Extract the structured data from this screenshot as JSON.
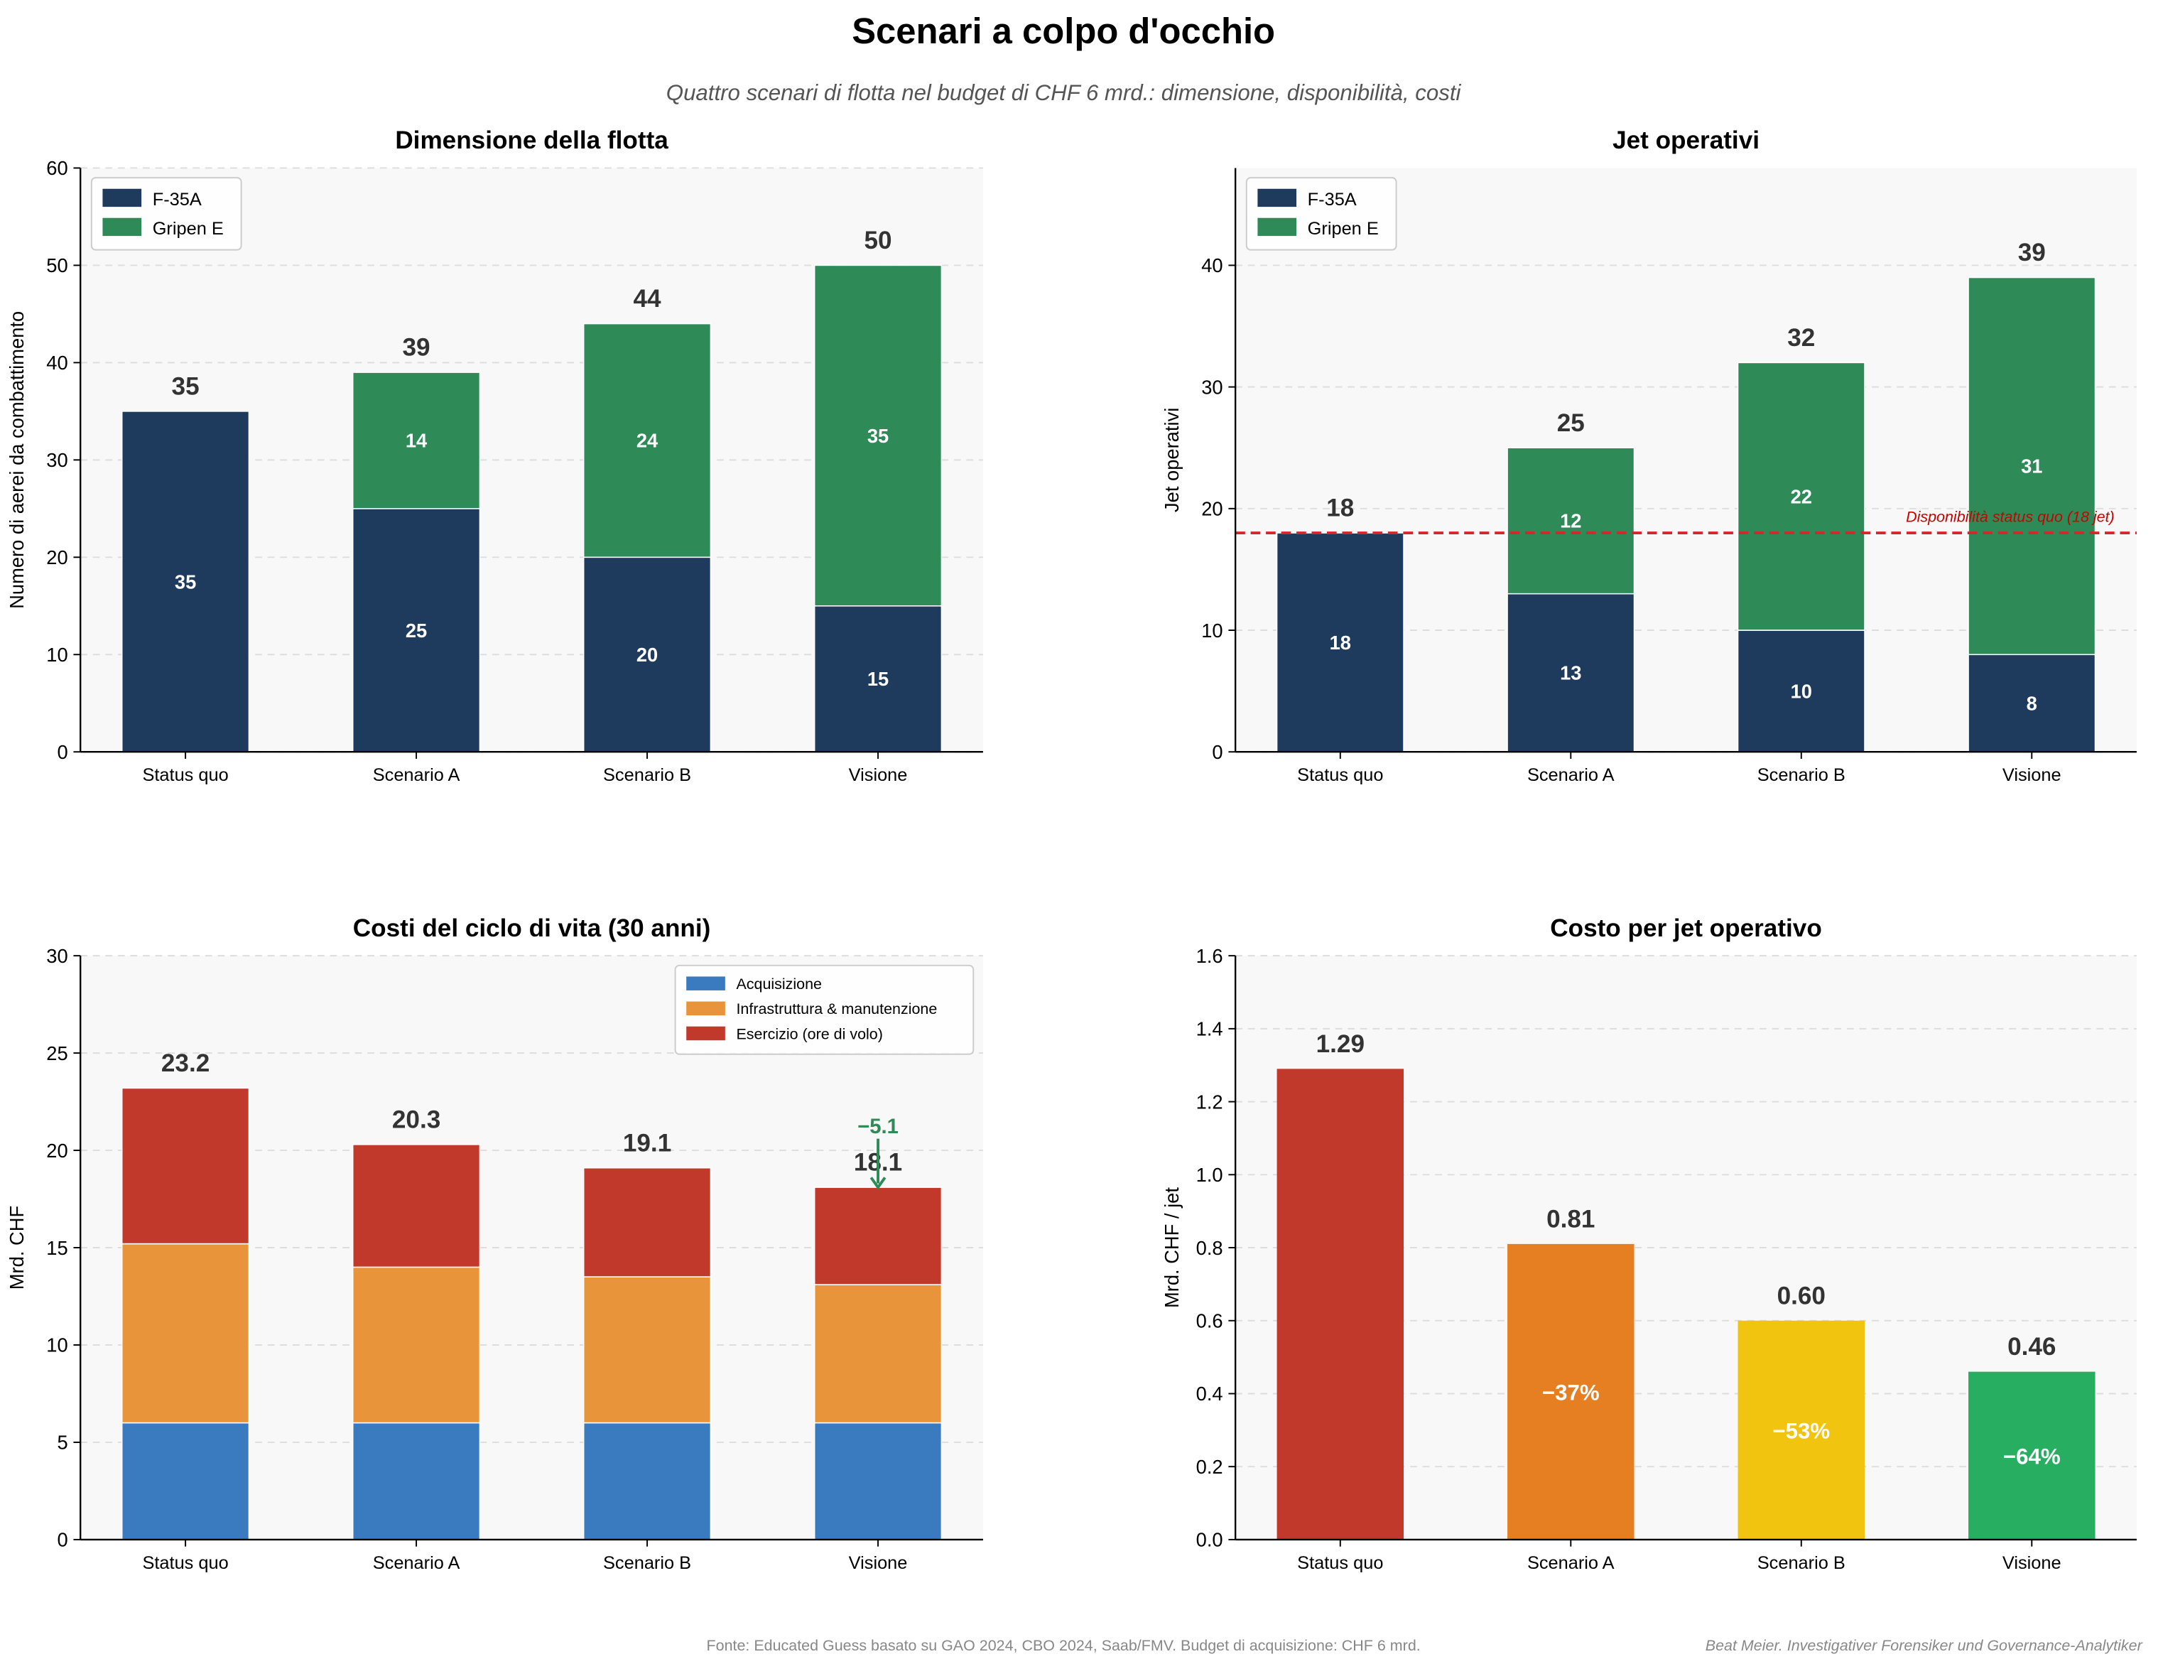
{
  "title": "Scenari a colpo d'occhio",
  "subtitle": "Quattro scenari di flotta nel budget di CHF 6 mrd.: dimensione, disponibilità, costi",
  "footer": {
    "source": "Fonte: Educated Guess basato su GAO 2024, CBO 2024, Saab/FMV. Budget di acquisizione: CHF 6 mrd.",
    "author": "Beat Meier. Investigativer Forensiker und Governance-Analytiker"
  },
  "chart_data": [
    {
      "type": "bar",
      "stacked": true,
      "title": "Dimensione della flotta",
      "xlabel": "",
      "ylabel": "Numero di aerei da combattimento",
      "categories": [
        "Status quo",
        "Scenario A",
        "Scenario B",
        "Visione"
      ],
      "series": [
        {
          "name": "F-35A",
          "values": [
            35,
            25,
            20,
            15
          ],
          "color": "#1e3a5c"
        },
        {
          "name": "Gripen E",
          "values": [
            0,
            14,
            24,
            35
          ],
          "color": "#2e8b57"
        }
      ],
      "segment_labels": true,
      "totals": [
        "35",
        "39",
        "44",
        "50"
      ],
      "ylim": [
        0,
        60
      ],
      "yticks": [
        "0",
        "10",
        "20",
        "30",
        "40",
        "50",
        "60"
      ],
      "grid": true,
      "legend": "upper-left"
    },
    {
      "type": "bar",
      "stacked": true,
      "title": "Jet operativi",
      "xlabel": "",
      "ylabel": "Jet operativi",
      "categories": [
        "Status quo",
        "Scenario A",
        "Scenario B",
        "Visione"
      ],
      "series": [
        {
          "name": "F-35A",
          "values": [
            18,
            13,
            10,
            8
          ],
          "color": "#1e3a5c"
        },
        {
          "name": "Gripen E",
          "values": [
            0,
            12,
            22,
            31
          ],
          "color": "#2e8b57"
        }
      ],
      "segment_labels": true,
      "totals": [
        "18",
        "25",
        "32",
        "39"
      ],
      "reference_line": {
        "value": 18,
        "label": "Disponibilità status quo (18 jet)",
        "color": "#d62728"
      },
      "ylim": [
        0,
        48
      ],
      "yticks": [
        "0",
        "10",
        "20",
        "30",
        "40"
      ],
      "grid": true,
      "legend": "upper-left"
    },
    {
      "type": "bar",
      "stacked": true,
      "title": "Costi del ciclo di vita (30 anni)",
      "xlabel": "",
      "ylabel": "Mrd. CHF",
      "categories": [
        "Status quo",
        "Scenario A",
        "Scenario B",
        "Visione"
      ],
      "series": [
        {
          "name": "Acquisizione",
          "values": [
            6,
            6,
            6,
            6
          ],
          "color": "#3a7abf"
        },
        {
          "name": "Infrastruttura & manutenzione",
          "values": [
            9.2,
            8.0,
            7.5,
            7.1
          ],
          "color": "#e8943a"
        },
        {
          "name": "Esercizio (ore di volo)",
          "values": [
            8.0,
            6.3,
            5.6,
            5.0
          ],
          "color": "#c0392b"
        }
      ],
      "segment_labels": false,
      "totals": [
        "23.2",
        "20.3",
        "19.1",
        "18.1"
      ],
      "annotation": {
        "text": "−5.1",
        "category_index": 3,
        "color": "#2e8b57"
      },
      "ylim": [
        0,
        30
      ],
      "yticks": [
        "0",
        "5",
        "10",
        "15",
        "20",
        "25",
        "30"
      ],
      "grid": true,
      "legend": "upper-right"
    },
    {
      "type": "bar",
      "stacked": false,
      "title": "Costo per jet operativo",
      "xlabel": "",
      "ylabel": "Mrd. CHF / jet",
      "categories": [
        "Status quo",
        "Scenario A",
        "Scenario B",
        "Visione"
      ],
      "values": [
        1.29,
        0.81,
        0.6,
        0.46
      ],
      "colors": [
        "#c0392b",
        "#e67e22",
        "#f1c40f",
        "#27ae60"
      ],
      "totals": [
        "1.29",
        "0.81",
        "0.60",
        "0.46"
      ],
      "change_labels": [
        "",
        "−37%",
        "−53%",
        "−64%"
      ],
      "ylim": [
        0,
        1.6
      ],
      "yticks": [
        "0.0",
        "0.2",
        "0.4",
        "0.6",
        "0.8",
        "1.0",
        "1.2",
        "1.4",
        "1.6"
      ],
      "grid": true,
      "legend": "none"
    }
  ]
}
